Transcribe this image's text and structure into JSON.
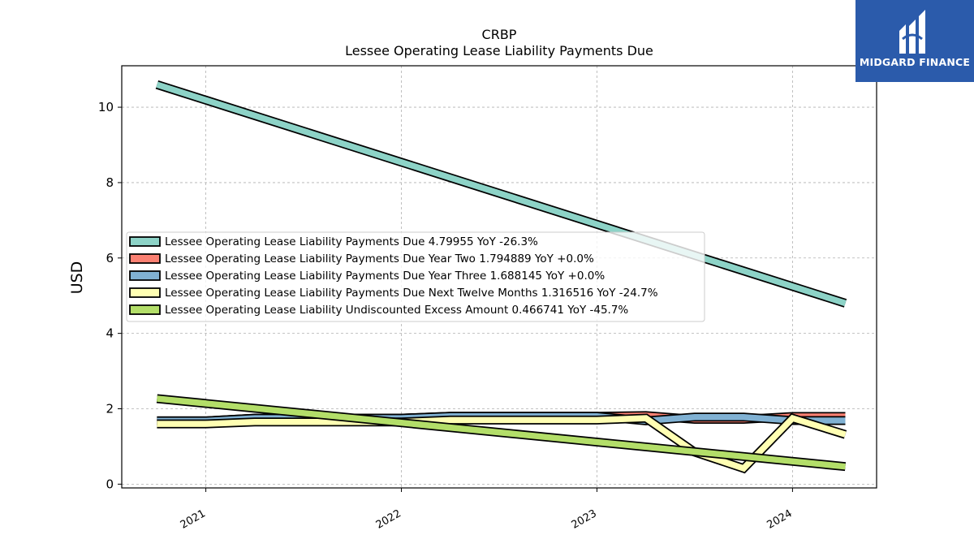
{
  "chart_data": {
    "type": "line",
    "title": "CRBP",
    "subtitle": "Lessee Operating Lease Liability Payments Due",
    "ylabel": "USD",
    "xlabel": "",
    "ylim": [
      -0.1,
      11.1
    ],
    "xlim": [
      2020.57,
      2024.43
    ],
    "yticks": [
      0,
      2,
      4,
      6,
      8,
      10
    ],
    "xticks": [
      {
        "value": 2021.0,
        "label": "2021"
      },
      {
        "value": 2022.0,
        "label": "2022"
      },
      {
        "value": 2023.0,
        "label": "2023"
      },
      {
        "value": 2024.0,
        "label": "2024"
      }
    ],
    "grid": true,
    "legend_position": "center-left",
    "series": [
      {
        "name": "Lessee Operating Lease Liability Payments Due",
        "legend_label": "Lessee Operating Lease Liability Payments Due  4.79955 YoY -26.3%",
        "color": "#8dd3c7",
        "x": [
          2020.75,
          2024.27
        ],
        "y": [
          10.6,
          4.79955
        ]
      },
      {
        "name": "Lessee Operating Lease Liability Payments Due Year Two",
        "legend_label": "Lessee Operating Lease Liability Payments Due Year Two  1.794889 YoY +0.0%",
        "color": "#fb8072",
        "x": [
          2020.75,
          2021.0,
          2021.25,
          2021.5,
          2021.75,
          2022.0,
          2022.25,
          2022.5,
          2022.75,
          2023.0,
          2023.25,
          2023.5,
          2023.75,
          2024.0,
          2024.27
        ],
        "y": [
          1.68,
          1.68,
          1.75,
          1.75,
          1.75,
          1.75,
          1.8,
          1.8,
          1.8,
          1.8,
          1.82,
          1.72,
          1.72,
          1.794889,
          1.794889
        ]
      },
      {
        "name": "Lessee Operating Lease Liability Payments Due Year Three",
        "legend_label": "Lessee Operating Lease Liability Payments Due Year Three  1.688145 YoY +0.0%",
        "color": "#80b1d3",
        "x": [
          2020.75,
          2021.0,
          2021.25,
          2021.5,
          2021.75,
          2022.0,
          2022.25,
          2022.5,
          2022.75,
          2023.0,
          2023.25,
          2023.5,
          2023.75,
          2024.0,
          2024.27
        ],
        "y": [
          1.68,
          1.68,
          1.75,
          1.75,
          1.75,
          1.75,
          1.8,
          1.8,
          1.8,
          1.8,
          1.68,
          1.78,
          1.78,
          1.688145,
          1.688145
        ]
      },
      {
        "name": "Lessee Operating Lease Liability Payments Due Next Twelve Months",
        "legend_label": "Lessee Operating Lease Liability Payments Due Next Twelve Months  1.316516 YoY -24.7%",
        "color": "#ffffb3",
        "x": [
          2020.75,
          2021.0,
          2021.25,
          2021.5,
          2021.75,
          2022.0,
          2022.25,
          2022.5,
          2022.75,
          2023.0,
          2023.25,
          2023.5,
          2023.75,
          2024.0,
          2024.27
        ],
        "y": [
          1.6,
          1.6,
          1.65,
          1.65,
          1.65,
          1.65,
          1.7,
          1.7,
          1.7,
          1.7,
          1.75,
          0.85,
          0.42,
          1.75,
          1.316516
        ]
      },
      {
        "name": "Lessee Operating Lease Liability Undiscounted Excess Amount",
        "legend_label": "Lessee Operating Lease Liability Undiscounted Excess Amount  0.466741 YoY -45.7%",
        "color": "#b3de69",
        "x": [
          2020.75,
          2024.27
        ],
        "y": [
          2.27,
          0.466741
        ]
      }
    ]
  },
  "logo": {
    "text": "MIDGARD FINANCE",
    "color": "#2b5bab"
  }
}
